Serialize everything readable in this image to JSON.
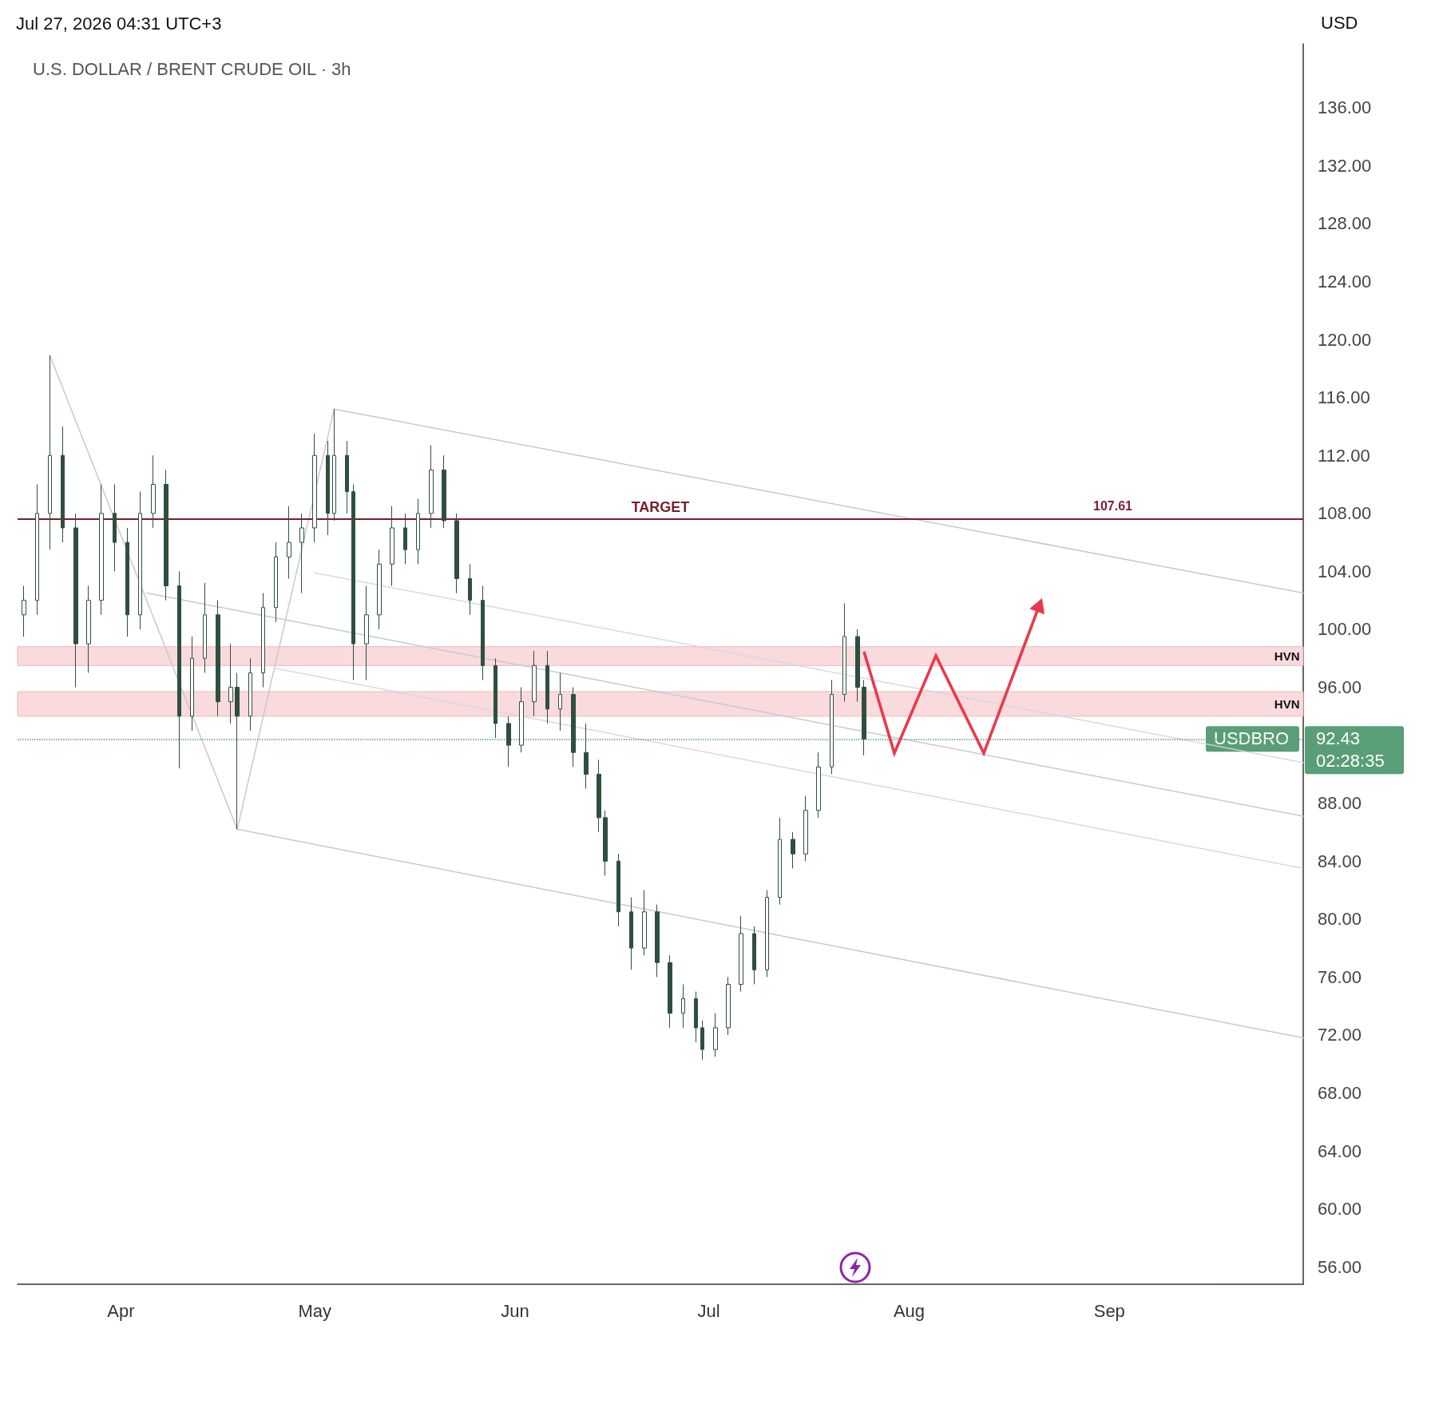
{
  "chart_data": {
    "type": "candlestick",
    "title": "U.S. DOLLAR / BRENT CRUDE OIL · 3h",
    "ylabel": "USD",
    "annotations": [
      "Jul 27, 2026 04:31 UTC+3",
      {
        "text": "107.61",
        "x": "2026-08-29",
        "y": 107.61
      },
      {
        "text": "92.43",
        "x": "2026-10-01",
        "y": 92.43
      },
      "02:28:35"
    ],
    "xlim": [
      "2026-03-16",
      "2026-10-01"
    ],
    "xticks": [
      {
        "value": "2026-04-01",
        "label": "Apr"
      },
      {
        "value": "2026-05-01",
        "label": "May"
      },
      {
        "value": "2026-06-01",
        "label": "Jun"
      },
      {
        "value": "2026-07-01",
        "label": "Jul"
      },
      {
        "value": "2026-08-01",
        "label": "Aug"
      },
      {
        "value": "2026-09-01",
        "label": "Sep"
      }
    ],
    "ylim": [
      54.8,
      140.4
    ],
    "yticks": [
      {
        "value": 56,
        "label": "56.00"
      },
      {
        "value": 60,
        "label": "60.00"
      },
      {
        "value": 64,
        "label": "64.00"
      },
      {
        "value": 68,
        "label": "68.00"
      },
      {
        "value": 72,
        "label": "72.00"
      },
      {
        "value": 76,
        "label": "76.00"
      },
      {
        "value": 80,
        "label": "80.00"
      },
      {
        "value": 84,
        "label": "84.00"
      },
      {
        "value": 88,
        "label": "88.00"
      },
      {
        "value": 96,
        "label": "96.00"
      },
      {
        "value": 100,
        "label": "100.00"
      },
      {
        "value": 104,
        "label": "104.00"
      },
      {
        "value": 108,
        "label": "108.00"
      },
      {
        "value": 112,
        "label": "112.00"
      },
      {
        "value": 116,
        "label": "116.00"
      },
      {
        "value": 120,
        "label": "120.00"
      },
      {
        "value": 124,
        "label": "124.00"
      },
      {
        "value": 128,
        "label": "128.00"
      },
      {
        "value": 132,
        "label": "132.00"
      },
      {
        "value": 136,
        "label": "136.00"
      }
    ],
    "ref_lines": [
      {
        "axis": "y",
        "value": 107.61,
        "label": "TARGET",
        "color": "#7b1d2c"
      },
      {
        "axis": "y",
        "value": 92.43,
        "label": "USDBRO",
        "color": "#5a9e77",
        "line_style": "dotted"
      }
    ],
    "bands": [
      {
        "axis": "y",
        "from": 97.5,
        "to": 98.8,
        "label": "HVN",
        "color": "#f9dadd"
      },
      {
        "axis": "y",
        "from": 94.0,
        "to": 95.7,
        "label": "HVN",
        "color": "#f9dadd"
      }
    ],
    "series": [
      {
        "color": "#2f4f3e",
        "x": [
          "2026-03-17",
          "2026-03-19",
          "2026-03-21",
          "2026-03-23",
          "2026-03-25",
          "2026-03-27",
          "2026-03-29",
          "2026-03-31",
          "2026-04-02",
          "2026-04-04",
          "2026-04-06",
          "2026-04-08",
          "2026-04-10",
          "2026-04-12",
          "2026-04-14",
          "2026-04-16",
          "2026-04-18",
          "2026-04-19",
          "2026-04-21",
          "2026-04-23",
          "2026-04-25",
          "2026-04-27",
          "2026-04-29",
          "2026-05-01",
          "2026-05-03",
          "2026-05-04",
          "2026-05-06",
          "2026-05-07",
          "2026-05-09",
          "2026-05-11",
          "2026-05-13",
          "2026-05-15",
          "2026-05-17",
          "2026-05-19",
          "2026-05-21",
          "2026-05-23",
          "2026-05-25",
          "2026-05-27",
          "2026-05-29",
          "2026-05-31",
          "2026-06-02",
          "2026-06-04",
          "2026-06-06",
          "2026-06-08",
          "2026-06-10",
          "2026-06-12",
          "2026-06-14",
          "2026-06-15",
          "2026-06-17",
          "2026-06-19",
          "2026-06-21",
          "2026-06-23",
          "2026-06-25",
          "2026-06-27",
          "2026-06-29",
          "2026-06-30",
          "2026-07-02",
          "2026-07-04",
          "2026-07-06",
          "2026-07-08",
          "2026-07-10",
          "2026-07-12",
          "2026-07-14",
          "2026-07-16",
          "2026-07-18",
          "2026-07-20",
          "2026-07-22",
          "2026-07-24",
          "2026-07-25"
        ],
        "ohlc": [
          [
            101,
            103,
            99.5,
            102
          ],
          [
            102,
            110,
            101,
            108
          ],
          [
            108,
            118.9,
            105.5,
            112
          ],
          [
            112,
            114,
            106,
            107
          ],
          [
            107,
            108,
            96,
            99
          ],
          [
            99,
            103,
            97,
            102
          ],
          [
            102,
            110,
            101,
            108
          ],
          [
            108,
            110,
            104,
            106
          ],
          [
            106,
            107,
            99.5,
            101
          ],
          [
            101,
            109.5,
            100,
            108
          ],
          [
            108,
            112,
            107,
            110
          ],
          [
            110,
            111,
            102,
            103
          ],
          [
            103,
            104,
            90.4,
            94
          ],
          [
            94,
            99.5,
            93,
            98
          ],
          [
            98,
            103.2,
            97,
            101
          ],
          [
            101,
            102,
            94,
            95
          ],
          [
            95,
            99,
            93.5,
            96
          ],
          [
            96,
            97,
            86.2,
            94
          ],
          [
            94,
            98,
            93,
            97
          ],
          [
            97,
            102.5,
            96,
            101.5
          ],
          [
            101.5,
            106,
            100.5,
            105
          ],
          [
            105,
            108.5,
            103.5,
            106
          ],
          [
            106,
            108,
            102.5,
            107
          ],
          [
            107,
            113.5,
            106,
            112
          ],
          [
            112,
            113,
            106.5,
            108
          ],
          [
            108,
            115.2,
            107.5,
            112
          ],
          [
            112,
            113,
            108,
            109.5
          ],
          [
            109.5,
            110,
            96.5,
            99
          ],
          [
            99,
            103,
            96.5,
            101
          ],
          [
            101,
            105.5,
            100,
            104.5
          ],
          [
            104.5,
            108.5,
            103,
            107
          ],
          [
            107,
            108,
            104.5,
            105.5
          ],
          [
            105.5,
            109,
            104.5,
            108
          ],
          [
            108,
            112.7,
            107,
            111
          ],
          [
            111,
            112,
            107,
            107.5
          ],
          [
            107.5,
            108,
            102.5,
            103.5
          ],
          [
            103.5,
            104.5,
            101,
            102
          ],
          [
            102,
            103,
            96.5,
            97.5
          ],
          [
            97.5,
            98,
            92.5,
            93.5
          ],
          [
            93.5,
            94,
            90.5,
            92
          ],
          [
            92,
            96,
            91.5,
            95
          ],
          [
            95,
            98.5,
            94,
            97.5
          ],
          [
            97.5,
            98.5,
            93.5,
            94.5
          ],
          [
            94.5,
            97,
            93,
            95.5
          ],
          [
            95.5,
            96,
            90.5,
            91.5
          ],
          [
            91.5,
            93.5,
            89,
            90
          ],
          [
            90,
            91,
            86,
            87
          ],
          [
            87,
            87.5,
            83,
            84
          ],
          [
            84,
            84.5,
            79.5,
            80.5
          ],
          [
            80.5,
            81.5,
            76.5,
            78
          ],
          [
            78,
            82,
            77.5,
            80.5
          ],
          [
            80.5,
            81,
            76,
            77
          ],
          [
            77,
            77.5,
            72.5,
            73.5
          ],
          [
            73.5,
            75.5,
            72.5,
            74.5
          ],
          [
            74.5,
            75,
            71.5,
            72.5
          ],
          [
            72.5,
            73,
            70.3,
            71
          ],
          [
            71,
            73.5,
            70.5,
            72.5
          ],
          [
            72.5,
            76,
            72,
            75.5
          ],
          [
            75.5,
            80.2,
            75,
            79
          ],
          [
            79,
            79.5,
            75.5,
            76.5
          ],
          [
            76.5,
            82,
            76,
            81.5
          ],
          [
            81.5,
            87,
            81,
            85.5
          ],
          [
            85.5,
            86,
            83.5,
            84.5
          ],
          [
            84.5,
            88.5,
            84,
            87.5
          ],
          [
            87.5,
            91.5,
            87,
            90.5
          ],
          [
            90.5,
            96.5,
            90,
            95.5
          ],
          [
            95.5,
            101.8,
            95,
            99.5
          ],
          [
            99.5,
            100,
            95,
            96
          ],
          [
            96,
            96.5,
            91.3,
            92.43
          ]
        ]
      },
      {
        "type": "line",
        "color": "#c9c9cc",
        "x": [
          "2026-05-04",
          "2026-10-01"
        ],
        "values": [
          115.2,
          102.5
        ]
      },
      {
        "type": "line",
        "color": "#c9c9cc",
        "x": [
          "2026-04-05",
          "2026-10-01"
        ],
        "values": [
          102.5,
          87.1
        ]
      },
      {
        "type": "line",
        "color": "#c9c9cc",
        "x": [
          "2026-04-19",
          "2026-10-01"
        ],
        "values": [
          86.2,
          71.8
        ]
      },
      {
        "type": "line",
        "color": "#c9c9cc",
        "x": [
          "2026-03-21",
          "2026-04-19",
          "2026-05-04"
        ],
        "values": [
          118.9,
          86.2,
          115.2
        ]
      },
      {
        "type": "line",
        "color": "#d6d6dc",
        "line_style": "dotted",
        "x": [
          "2026-05-01",
          "2026-10-01"
        ],
        "values": [
          103.9,
          90.8
        ]
      },
      {
        "type": "line",
        "color": "#d6d6dc",
        "line_style": "dotted",
        "x": [
          "2026-04-25",
          "2026-10-01"
        ],
        "values": [
          97.3,
          83.5
        ]
      }
    ]
  }
}
